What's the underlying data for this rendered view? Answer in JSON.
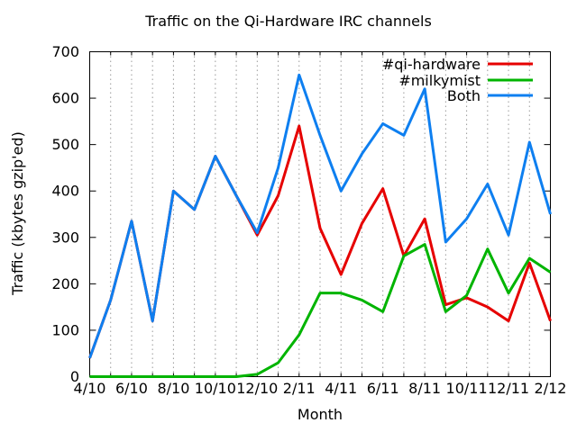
{
  "chart_data": {
    "type": "line",
    "title": "Traffic on the Qi-Hardware IRC channels",
    "xlabel": "Month",
    "ylabel": "Traffic (kbytes gzip'ed)",
    "ylim": [
      0,
      700
    ],
    "y_ticks": [
      0,
      100,
      200,
      300,
      400,
      500,
      600,
      700
    ],
    "grid": "dotted vertical gridline at every month",
    "legend_position": "top-right inside plot",
    "months": [
      "4/10",
      "5/10",
      "6/10",
      "7/10",
      "8/10",
      "9/10",
      "10/10",
      "11/10",
      "12/10",
      "1/11",
      "2/11",
      "3/11",
      "4/11",
      "5/11",
      "6/11",
      "7/11",
      "8/11",
      "9/11",
      "10/11",
      "11/11",
      "12/11",
      "1/12",
      "2/12"
    ],
    "x_tick_labels": [
      "4/10",
      "6/10",
      "8/10",
      "10/10",
      "12/10",
      "2/11",
      "4/11",
      "6/11",
      "8/11",
      "10/11",
      "12/11",
      "2/12"
    ],
    "series": [
      {
        "name": "#qi-hardware",
        "color": "#e60000",
        "values": [
          40,
          165,
          335,
          120,
          400,
          360,
          475,
          390,
          305,
          390,
          540,
          320,
          220,
          330,
          405,
          260,
          340,
          155,
          170,
          150,
          120,
          245,
          120
        ],
        "note": "hidden beneath Both line before 12/10 (values equal while #milkymist is 0)"
      },
      {
        "name": "#milkymist",
        "color": "#00b400",
        "values": [
          0,
          0,
          0,
          0,
          0,
          0,
          0,
          0,
          5,
          30,
          90,
          180,
          180,
          165,
          140,
          260,
          285,
          140,
          175,
          275,
          180,
          255,
          225
        ]
      },
      {
        "name": "Both",
        "color": "#0e7ff0",
        "values": [
          40,
          165,
          335,
          120,
          400,
          360,
          475,
          390,
          310,
          450,
          650,
          520,
          400,
          480,
          545,
          520,
          620,
          290,
          340,
          415,
          305,
          505,
          350
        ]
      }
    ]
  }
}
